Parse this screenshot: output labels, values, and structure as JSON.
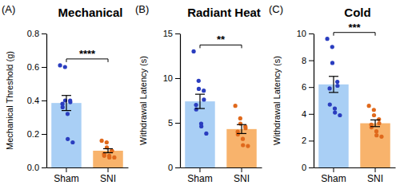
{
  "chart_data": [
    {
      "type": "bar",
      "panel": "(A)",
      "title": "Mechanical",
      "y_label": "Mechanical Threshold (g)",
      "categories": [
        "Sham",
        "SNI"
      ],
      "values": [
        0.385,
        0.1
      ],
      "errors": [
        0.045,
        0.012
      ],
      "colors": [
        "#a9cff5",
        "#f8b36c"
      ],
      "points": {
        "colors": [
          "#2a3dbf",
          "#e0691c"
        ],
        "values": [
          [
            0.61,
            0.6,
            0.4,
            0.4,
            0.39,
            0.38,
            0.36,
            0.32,
            0.17,
            0.15
          ],
          [
            0.16,
            0.15,
            0.12,
            0.1,
            0.1,
            0.08,
            0.07,
            0.07,
            0.06,
            0.06
          ]
        ]
      },
      "annotations": [
        "****"
      ],
      "ylim": [
        0,
        0.8
      ],
      "yticks": [
        {
          "value": 0,
          "label": "0.0"
        },
        0.2,
        0.4,
        0.6,
        0.8
      ]
    },
    {
      "type": "bar",
      "panel": "(B)",
      "title": "Radiant Heat",
      "y_label": "Withdrawal Latency (s)",
      "categories": [
        "Sham",
        "SNI"
      ],
      "values": [
        7.4,
        4.3
      ],
      "errors": [
        0.8,
        0.5
      ],
      "colors": [
        "#a9cff5",
        "#f8b36c"
      ],
      "points": {
        "colors": [
          "#2a3dbf",
          "#e0691c"
        ],
        "values": [
          [
            13.0,
            9.7,
            8.8,
            8.6,
            7.6,
            7.0,
            6.5,
            4.9,
            4.6,
            3.8
          ],
          [
            6.9,
            5.5,
            4.9,
            4.6,
            4.4,
            4.0,
            3.7,
            3.2,
            2.5,
            2.4
          ]
        ]
      },
      "annotations": [
        "**"
      ],
      "ylim": [
        0,
        15
      ],
      "yticks": [
        0,
        5,
        10,
        15
      ]
    },
    {
      "type": "bar",
      "panel": "(C)",
      "title": "Cold",
      "y_label": "Withdrawal Latency (s)",
      "categories": [
        "Sham",
        "SNI"
      ],
      "values": [
        6.2,
        3.3
      ],
      "errors": [
        0.6,
        0.25
      ],
      "colors": [
        "#a9cff5",
        "#f8b36c"
      ],
      "points": {
        "colors": [
          "#2a3dbf",
          "#e0691c"
        ],
        "values": [
          [
            9.6,
            9.0,
            7.8,
            6.4,
            6.1,
            5.9,
            4.7,
            4.4,
            4.1,
            3.9
          ],
          [
            4.6,
            4.3,
            3.9,
            3.6,
            3.3,
            3.2,
            3.0,
            2.7,
            2.4,
            2.3
          ]
        ]
      },
      "annotations": [
        "***"
      ],
      "ylim": [
        0,
        10
      ],
      "yticks": [
        0,
        2,
        4,
        6,
        8,
        10
      ]
    }
  ]
}
